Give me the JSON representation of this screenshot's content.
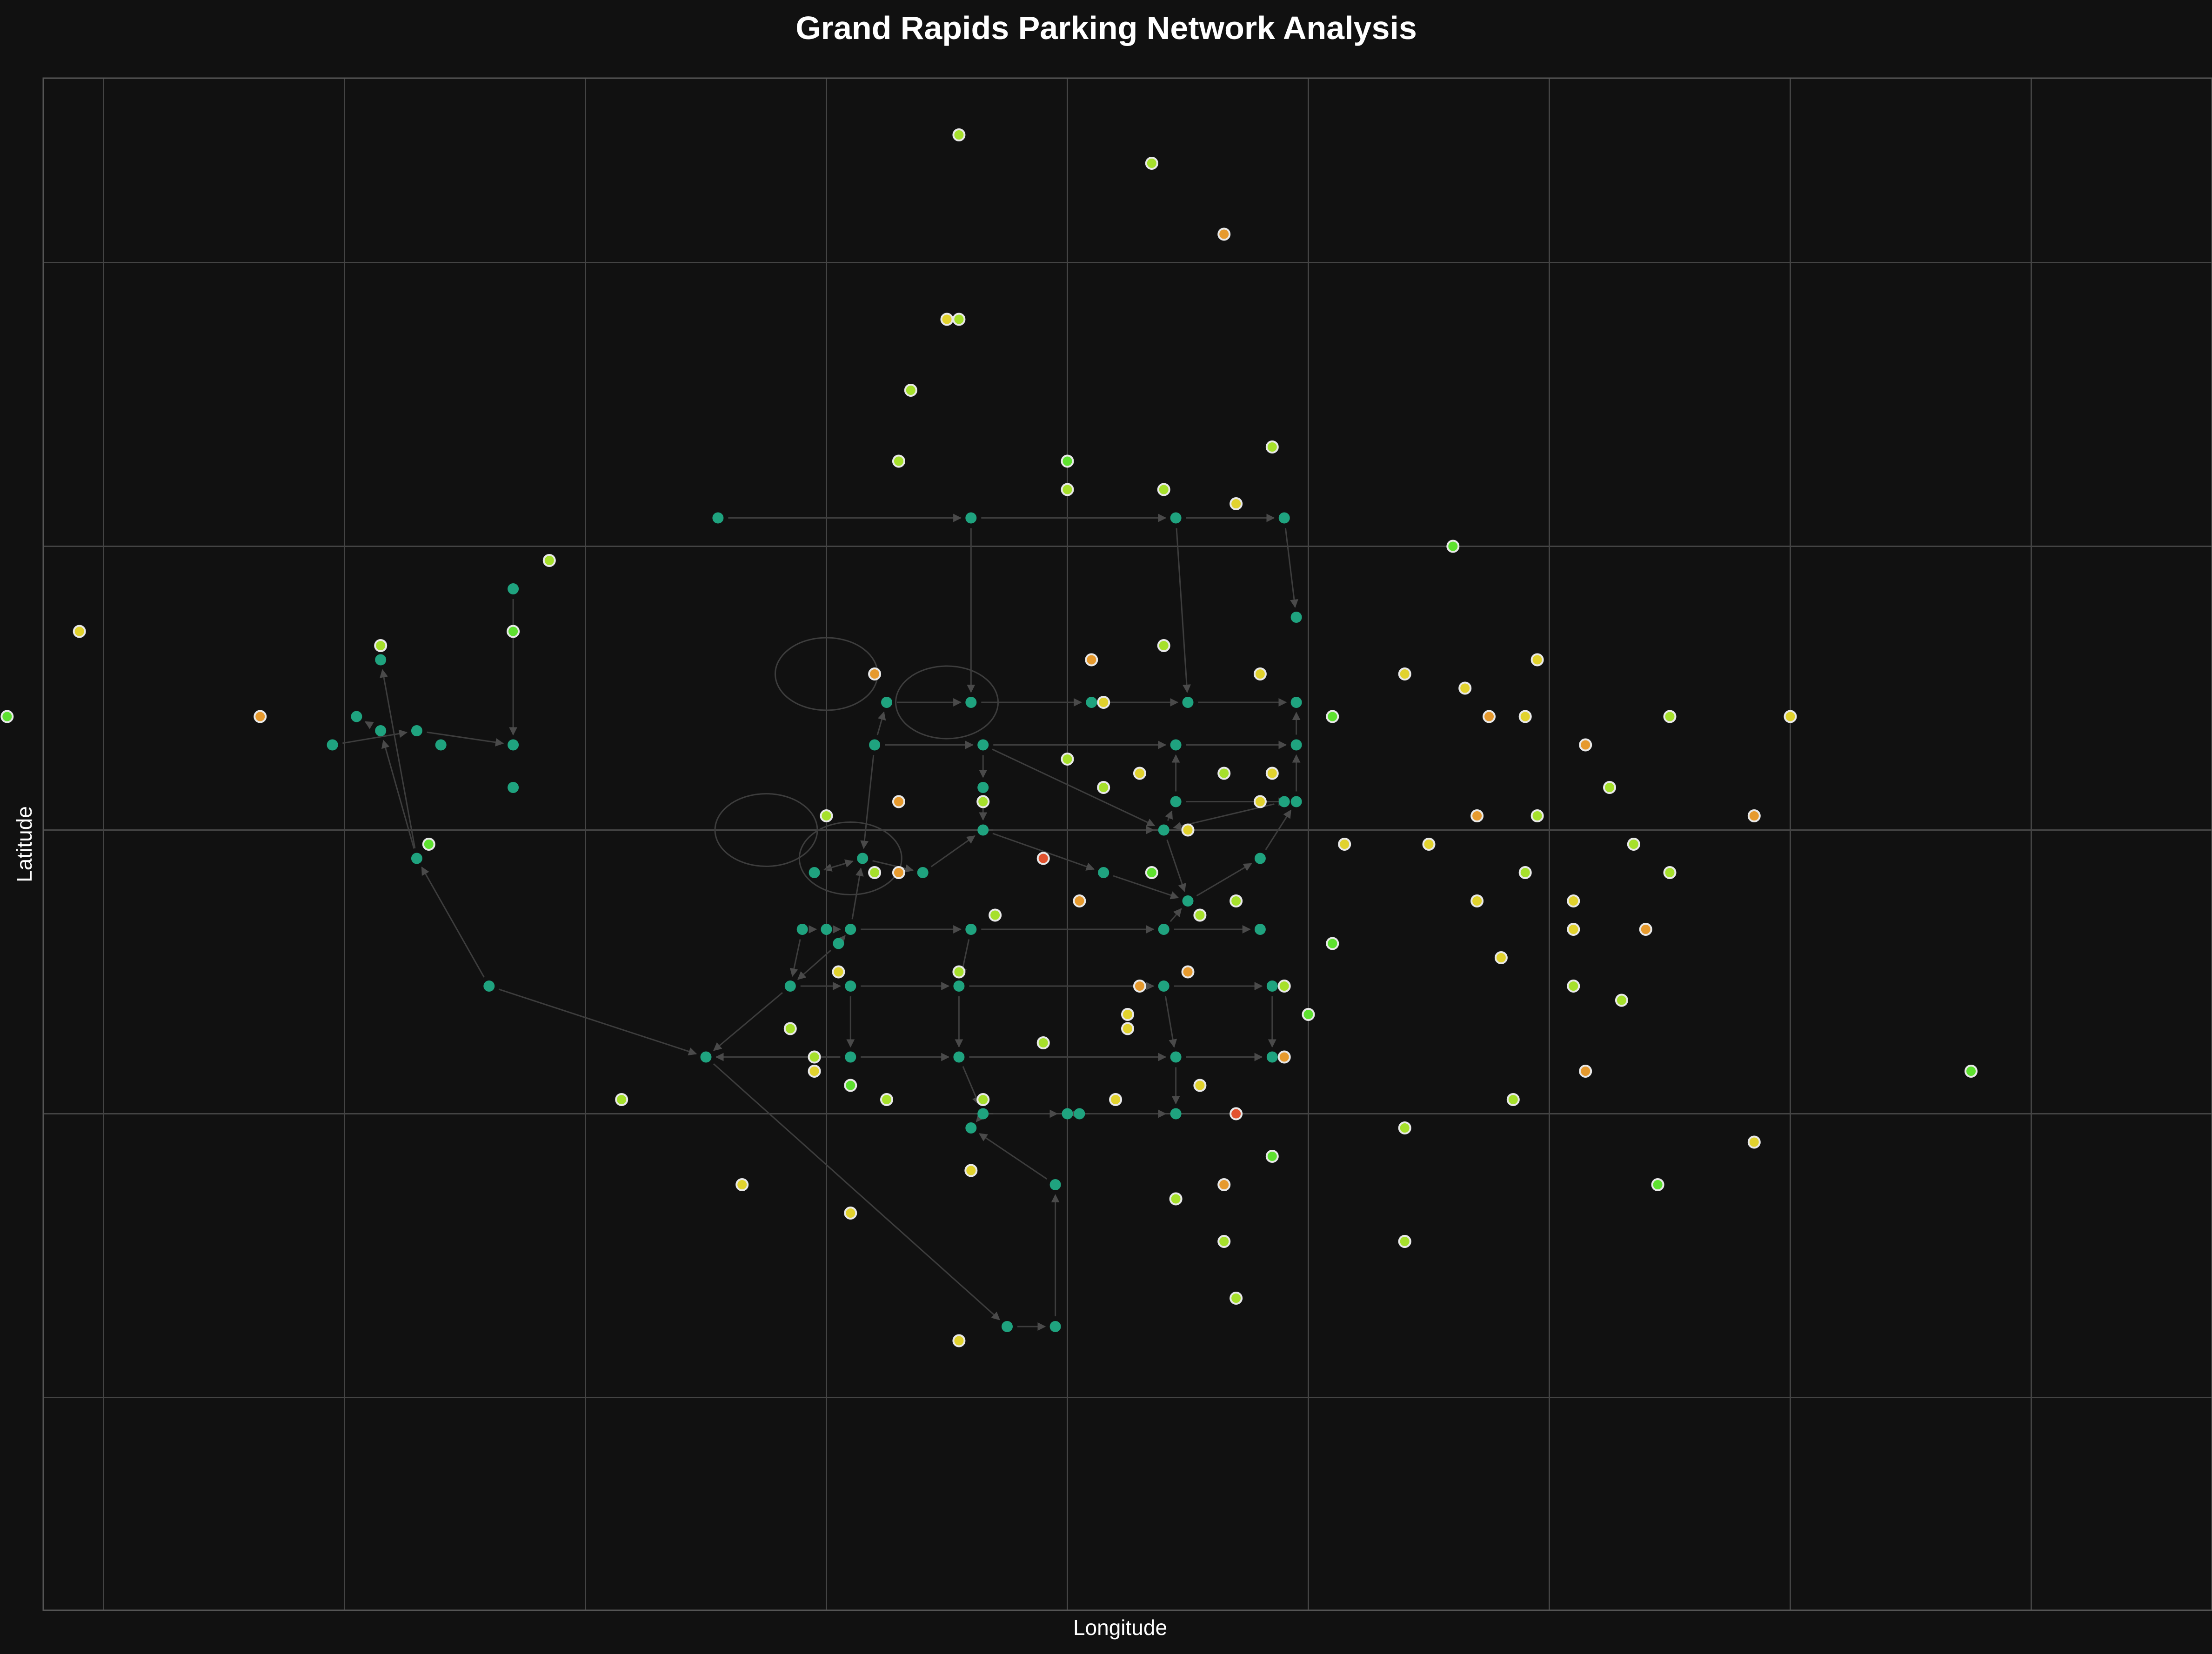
{
  "chart_data": {
    "type": "scatter",
    "title": "Grand Rapids Parking Network Analysis",
    "xlabel": "Longitude",
    "ylabel": "Latitude",
    "xlim": [
      -0.0075,
      0.0105
    ],
    "ylim": [
      -0.0055,
      0.0053
    ],
    "grid": true,
    "x_gridlines": [
      -0.007,
      -0.005,
      -0.003,
      -0.001,
      0.001,
      0.003,
      0.005,
      0.007,
      0.009
    ],
    "y_gridlines": [
      -0.004,
      -0.002,
      0.0,
      0.002,
      0.004
    ],
    "node_color": "#1fa37f",
    "edge_color": "#3d3d3d",
    "lot_colors": {
      "green": "#5ee12f",
      "lime": "#a6e02c",
      "yellow": "#e1d22e",
      "orange": "#e69a2e",
      "red": "#e2532f"
    },
    "network_nodes": [
      [
        -0.0019,
        0.0022
      ],
      [
        0.0002,
        0.0022
      ],
      [
        0.0019,
        0.0022
      ],
      [
        0.0028,
        0.0022
      ],
      [
        -0.0036,
        0.0017
      ],
      [
        0.0029,
        0.0015
      ],
      [
        -0.0047,
        0.0012
      ],
      [
        -0.0049,
        0.0008
      ],
      [
        -0.0047,
        0.0007
      ],
      [
        -0.0044,
        0.0007
      ],
      [
        -0.0042,
        0.0006
      ],
      [
        -0.0051,
        0.0006
      ],
      [
        -0.0036,
        0.0006
      ],
      [
        -0.0036,
        0.0003
      ],
      [
        -0.0005,
        0.0009
      ],
      [
        0.0002,
        0.0009
      ],
      [
        0.0012,
        0.0009
      ],
      [
        0.002,
        0.0009
      ],
      [
        0.0029,
        0.0009
      ],
      [
        -0.0006,
        0.0006
      ],
      [
        0.0003,
        0.0006
      ],
      [
        0.0019,
        0.0006
      ],
      [
        0.0029,
        0.0006
      ],
      [
        0.0003,
        0.0003
      ],
      [
        0.0019,
        0.0002
      ],
      [
        0.0028,
        0.0002
      ],
      [
        0.0029,
        0.0002
      ],
      [
        0.0003,
        0.0
      ],
      [
        0.0018,
        0.0
      ],
      [
        -0.0044,
        -0.0002
      ],
      [
        -0.0011,
        -0.0003
      ],
      [
        -0.0007,
        -0.0002
      ],
      [
        -0.0002,
        -0.0003
      ],
      [
        0.0013,
        -0.0003
      ],
      [
        0.0026,
        -0.0002
      ],
      [
        0.002,
        -0.0005
      ],
      [
        -0.0012,
        -0.0007
      ],
      [
        -0.001,
        -0.0007
      ],
      [
        -0.0008,
        -0.0007
      ],
      [
        0.0002,
        -0.0007
      ],
      [
        0.0018,
        -0.0007
      ],
      [
        0.0026,
        -0.0007
      ],
      [
        -0.0009,
        -0.0008
      ],
      [
        -0.0038,
        -0.0011
      ],
      [
        -0.0013,
        -0.0011
      ],
      [
        -0.0008,
        -0.0011
      ],
      [
        0.0001,
        -0.0011
      ],
      [
        0.0018,
        -0.0011
      ],
      [
        0.0027,
        -0.0011
      ],
      [
        -0.002,
        -0.0016
      ],
      [
        -0.0008,
        -0.0016
      ],
      [
        0.0001,
        -0.0016
      ],
      [
        0.0019,
        -0.0016
      ],
      [
        0.0027,
        -0.0016
      ],
      [
        -0.0008,
        -0.0018
      ],
      [
        0.0003,
        -0.002
      ],
      [
        0.001,
        -0.002
      ],
      [
        0.0011,
        -0.002
      ],
      [
        0.0019,
        -0.002
      ],
      [
        0.0002,
        -0.0021
      ],
      [
        0.0009,
        -0.0025
      ],
      [
        0.0005,
        -0.0035
      ],
      [
        0.0009,
        -0.0035
      ]
    ],
    "network_edges": [
      [
        0,
        1
      ],
      [
        1,
        2
      ],
      [
        2,
        3
      ],
      [
        1,
        15
      ],
      [
        2,
        17
      ],
      [
        3,
        5
      ],
      [
        14,
        15
      ],
      [
        15,
        16
      ],
      [
        16,
        17
      ],
      [
        17,
        18
      ],
      [
        19,
        14
      ],
      [
        19,
        20
      ],
      [
        20,
        21
      ],
      [
        21,
        22
      ],
      [
        22,
        18
      ],
      [
        20,
        23
      ],
      [
        23,
        27
      ],
      [
        27,
        28
      ],
      [
        28,
        24
      ],
      [
        24,
        21
      ],
      [
        24,
        26
      ],
      [
        26,
        22
      ],
      [
        20,
        28
      ],
      [
        25,
        28
      ],
      [
        4,
        12
      ],
      [
        11,
        9
      ],
      [
        9,
        12
      ],
      [
        29,
        6
      ],
      [
        29,
        8
      ],
      [
        8,
        7
      ],
      [
        43,
        29
      ],
      [
        43,
        49
      ],
      [
        49,
        61
      ],
      [
        61,
        62
      ],
      [
        62,
        60
      ],
      [
        60,
        59
      ],
      [
        59,
        55
      ],
      [
        31,
        30
      ],
      [
        31,
        32
      ],
      [
        32,
        27
      ],
      [
        27,
        33
      ],
      [
        33,
        35
      ],
      [
        35,
        34
      ],
      [
        34,
        26
      ],
      [
        36,
        37
      ],
      [
        37,
        38
      ],
      [
        38,
        39
      ],
      [
        39,
        40
      ],
      [
        40,
        41
      ],
      [
        40,
        35
      ],
      [
        28,
        35
      ],
      [
        44,
        45
      ],
      [
        45,
        46
      ],
      [
        46,
        47
      ],
      [
        47,
        48
      ],
      [
        38,
        42
      ],
      [
        42,
        44
      ],
      [
        45,
        50
      ],
      [
        50,
        49
      ],
      [
        50,
        51
      ],
      [
        51,
        52
      ],
      [
        52,
        53
      ],
      [
        48,
        53
      ],
      [
        46,
        51
      ],
      [
        47,
        52
      ],
      [
        39,
        46
      ],
      [
        51,
        55
      ],
      [
        55,
        56
      ],
      [
        56,
        57
      ],
      [
        57,
        58
      ],
      [
        52,
        58
      ],
      [
        36,
        44
      ],
      [
        38,
        31
      ],
      [
        30,
        31
      ],
      [
        19,
        31
      ],
      [
        44,
        49
      ]
    ],
    "network_loops": [
      [
        -0.001,
        0.0011
      ],
      [
        0.0,
        0.0009
      ],
      [
        -0.0015,
        0.0
      ],
      [
        -0.0008,
        -0.0002
      ]
    ],
    "parking_lots": [
      [
        0.0001,
        0.0049,
        "lime"
      ],
      [
        0.0017,
        0.0047,
        "lime"
      ],
      [
        0.0023,
        0.0042,
        "orange"
      ],
      [
        0.0001,
        0.0036,
        "lime"
      ],
      [
        0.0,
        0.0036,
        "yellow"
      ],
      [
        -0.0003,
        0.0031,
        "lime"
      ],
      [
        0.0027,
        0.0027,
        "lime"
      ],
      [
        -0.0004,
        0.0026,
        "lime"
      ],
      [
        0.001,
        0.0026,
        "green"
      ],
      [
        0.001,
        0.0024,
        "lime"
      ],
      [
        0.0018,
        0.0024,
        "lime"
      ],
      [
        0.0024,
        0.0023,
        "yellow"
      ],
      [
        -0.0033,
        0.0019,
        "lime"
      ],
      [
        0.0042,
        0.002,
        "green"
      ],
      [
        -0.0072,
        0.0014,
        "yellow"
      ],
      [
        -0.0036,
        0.0014,
        "green"
      ],
      [
        -0.0047,
        0.0013,
        "lime"
      ],
      [
        0.0012,
        0.0012,
        "orange"
      ],
      [
        0.0018,
        0.0013,
        "lime"
      ],
      [
        0.0049,
        0.0012,
        "yellow"
      ],
      [
        -0.0006,
        0.0011,
        "orange"
      ],
      [
        0.0026,
        0.0011,
        "yellow"
      ],
      [
        0.0038,
        0.0011,
        "yellow"
      ],
      [
        0.0043,
        0.001,
        "yellow"
      ],
      [
        -0.0057,
        0.0008,
        "orange"
      ],
      [
        0.0013,
        0.0009,
        "yellow"
      ],
      [
        0.0032,
        0.0008,
        "green"
      ],
      [
        0.0045,
        0.0008,
        "orange"
      ],
      [
        0.0048,
        0.0008,
        "yellow"
      ],
      [
        0.006,
        0.0008,
        "lime"
      ],
      [
        0.007,
        0.0008,
        "yellow"
      ],
      [
        -0.0078,
        0.0008,
        "green"
      ],
      [
        0.0053,
        0.0006,
        "orange"
      ],
      [
        0.001,
        0.0005,
        "lime"
      ],
      [
        0.0023,
        0.0004,
        "lime"
      ],
      [
        0.0016,
        0.0004,
        "yellow"
      ],
      [
        0.0027,
        0.0004,
        "yellow"
      ],
      [
        0.0055,
        0.0003,
        "lime"
      ],
      [
        -0.0004,
        0.0002,
        "orange"
      ],
      [
        0.0013,
        0.0003,
        "lime"
      ],
      [
        0.0026,
        0.0002,
        "yellow"
      ],
      [
        0.0003,
        0.0002,
        "lime"
      ],
      [
        0.0044,
        0.0001,
        "orange"
      ],
      [
        0.0049,
        0.0001,
        "lime"
      ],
      [
        0.0067,
        0.0001,
        "orange"
      ],
      [
        -0.001,
        0.0001,
        "lime"
      ],
      [
        0.002,
        -0.0,
        "yellow"
      ],
      [
        0.0057,
        -0.0001,
        "lime"
      ],
      [
        -0.0043,
        -0.0001,
        "green"
      ],
      [
        0.0033,
        -0.0001,
        "yellow"
      ],
      [
        0.004,
        -0.0001,
        "yellow"
      ],
      [
        -0.0004,
        -0.0003,
        "orange"
      ],
      [
        0.0008,
        -0.0002,
        "red"
      ],
      [
        -0.0006,
        -0.0003,
        "lime"
      ],
      [
        0.0017,
        -0.0003,
        "green"
      ],
      [
        0.0048,
        -0.0003,
        "lime"
      ],
      [
        0.006,
        -0.0003,
        "lime"
      ],
      [
        0.0004,
        -0.0006,
        "lime"
      ],
      [
        0.0011,
        -0.0005,
        "orange"
      ],
      [
        0.0024,
        -0.0005,
        "lime"
      ],
      [
        0.0044,
        -0.0005,
        "yellow"
      ],
      [
        0.0052,
        -0.0005,
        "yellow"
      ],
      [
        0.0021,
        -0.0006,
        "lime"
      ],
      [
        0.0052,
        -0.0007,
        "yellow"
      ],
      [
        0.0058,
        -0.0007,
        "orange"
      ],
      [
        0.0032,
        -0.0008,
        "green"
      ],
      [
        0.0046,
        -0.0009,
        "yellow"
      ],
      [
        -0.0009,
        -0.001,
        "yellow"
      ],
      [
        0.002,
        -0.001,
        "orange"
      ],
      [
        0.0016,
        -0.0011,
        "orange"
      ],
      [
        0.0028,
        -0.0011,
        "lime"
      ],
      [
        0.0001,
        -0.001,
        "lime"
      ],
      [
        0.0052,
        -0.0011,
        "lime"
      ],
      [
        0.0056,
        -0.0012,
        "lime"
      ],
      [
        0.0015,
        -0.0013,
        "yellow"
      ],
      [
        0.003,
        -0.0013,
        "green"
      ],
      [
        -0.0013,
        -0.0014,
        "lime"
      ],
      [
        0.0015,
        -0.0014,
        "yellow"
      ],
      [
        0.0008,
        -0.0015,
        "lime"
      ],
      [
        -0.0011,
        -0.0016,
        "lime"
      ],
      [
        -0.0011,
        -0.0017,
        "yellow"
      ],
      [
        0.0028,
        -0.0016,
        "orange"
      ],
      [
        0.0053,
        -0.0017,
        "orange"
      ],
      [
        0.0085,
        -0.0017,
        "green"
      ],
      [
        0.0021,
        -0.0018,
        "yellow"
      ],
      [
        -0.0008,
        -0.0018,
        "green"
      ],
      [
        -0.0005,
        -0.0019,
        "lime"
      ],
      [
        0.0003,
        -0.0019,
        "lime"
      ],
      [
        0.0014,
        -0.0019,
        "yellow"
      ],
      [
        -0.0027,
        -0.0019,
        "lime"
      ],
      [
        0.0047,
        -0.0019,
        "lime"
      ],
      [
        0.0024,
        -0.002,
        "red"
      ],
      [
        0.0038,
        -0.0021,
        "lime"
      ],
      [
        0.0067,
        -0.0022,
        "yellow"
      ],
      [
        0.0027,
        -0.0023,
        "green"
      ],
      [
        0.0002,
        -0.0024,
        "yellow"
      ],
      [
        -0.0017,
        -0.0025,
        "yellow"
      ],
      [
        0.0023,
        -0.0025,
        "orange"
      ],
      [
        0.0059,
        -0.0025,
        "green"
      ],
      [
        0.0019,
        -0.0026,
        "lime"
      ],
      [
        -0.0008,
        -0.0027,
        "yellow"
      ],
      [
        0.0023,
        -0.0029,
        "lime"
      ],
      [
        0.0038,
        -0.0029,
        "green"
      ],
      [
        0.0038,
        -0.0029,
        "lime"
      ],
      [
        0.0024,
        -0.0033,
        "lime"
      ],
      [
        0.0001,
        -0.0036,
        "yellow"
      ]
    ]
  }
}
